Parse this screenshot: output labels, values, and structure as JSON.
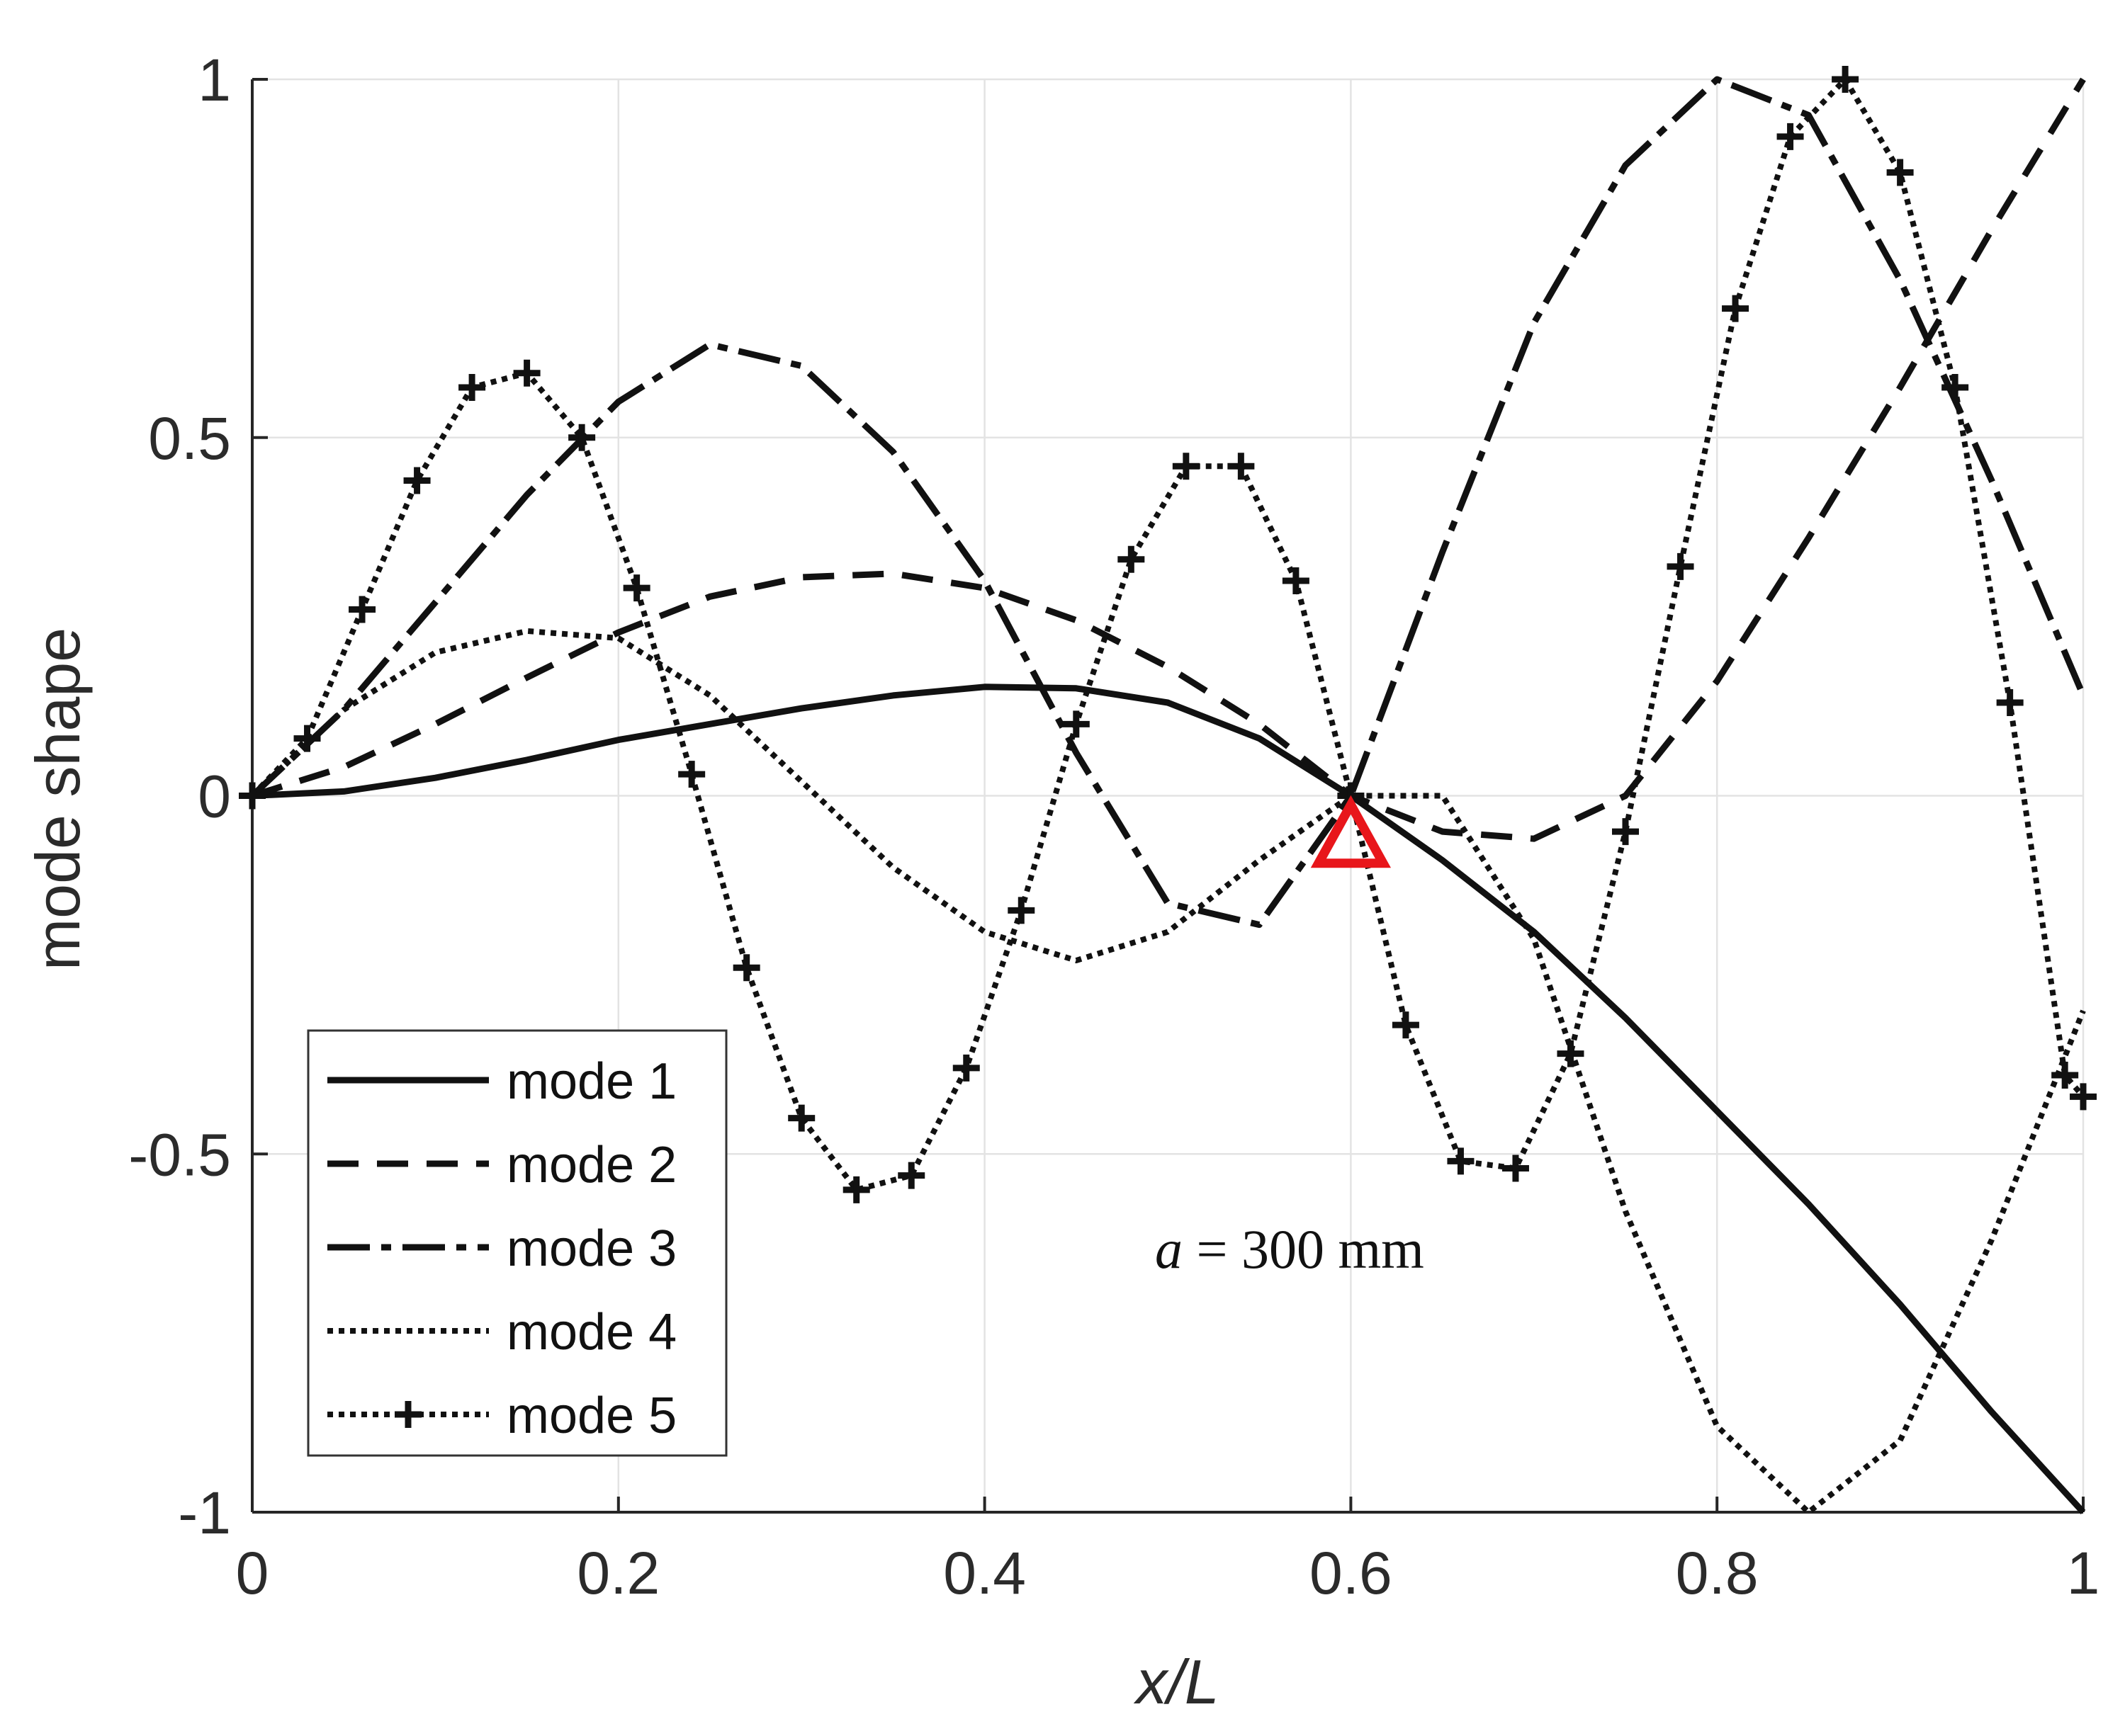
{
  "chart_data": {
    "type": "line",
    "title": "",
    "xlabel": "x/L",
    "ylabel": "mode shape",
    "xlim": [
      0,
      1
    ],
    "ylim": [
      -1,
      1
    ],
    "xticks": [
      0,
      0.2,
      0.4,
      0.6,
      0.8,
      1
    ],
    "yticks": [
      -1,
      -0.5,
      0,
      0.5,
      1
    ],
    "xtick_labels": [
      "0",
      "0.2",
      "0.4",
      "0.6",
      "0.8",
      "1"
    ],
    "ytick_labels": [
      "-1",
      "-0.5",
      "0",
      "0.5",
      "1"
    ],
    "grid": true,
    "legend_position": "bottom-left",
    "series": [
      {
        "name": "mode 1",
        "style": "solid",
        "marker": "none",
        "points": [
          [
            0,
            0
          ],
          [
            0.05,
            0.006
          ],
          [
            0.1,
            0.025
          ],
          [
            0.15,
            0.05
          ],
          [
            0.2,
            0.078
          ],
          [
            0.25,
            0.1
          ],
          [
            0.3,
            0.122
          ],
          [
            0.35,
            0.14
          ],
          [
            0.4,
            0.152
          ],
          [
            0.45,
            0.15
          ],
          [
            0.5,
            0.13
          ],
          [
            0.55,
            0.08
          ],
          [
            0.6,
            0
          ],
          [
            0.65,
            -0.09
          ],
          [
            0.7,
            -0.19
          ],
          [
            0.75,
            -0.31
          ],
          [
            0.8,
            -0.44
          ],
          [
            0.85,
            -0.57
          ],
          [
            0.9,
            -0.71
          ],
          [
            0.95,
            -0.86
          ],
          [
            1,
            -1.0
          ]
        ]
      },
      {
        "name": "mode 2",
        "style": "dashed",
        "marker": "none",
        "points": [
          [
            0,
            0
          ],
          [
            0.05,
            0.04
          ],
          [
            0.1,
            0.1
          ],
          [
            0.15,
            0.165
          ],
          [
            0.2,
            0.228
          ],
          [
            0.25,
            0.278
          ],
          [
            0.3,
            0.305
          ],
          [
            0.35,
            0.31
          ],
          [
            0.4,
            0.29
          ],
          [
            0.45,
            0.245
          ],
          [
            0.5,
            0.18
          ],
          [
            0.55,
            0.1
          ],
          [
            0.6,
            0
          ],
          [
            0.65,
            -0.05
          ],
          [
            0.7,
            -0.06
          ],
          [
            0.75,
            0
          ],
          [
            0.8,
            0.16
          ],
          [
            0.85,
            0.36
          ],
          [
            0.9,
            0.57
          ],
          [
            0.95,
            0.79
          ],
          [
            1,
            1.0
          ]
        ]
      },
      {
        "name": "mode 3",
        "style": "dashdot",
        "marker": "none",
        "points": [
          [
            0,
            0
          ],
          [
            0.05,
            0.12
          ],
          [
            0.1,
            0.27
          ],
          [
            0.15,
            0.42
          ],
          [
            0.2,
            0.55
          ],
          [
            0.25,
            0.63
          ],
          [
            0.3,
            0.6
          ],
          [
            0.35,
            0.48
          ],
          [
            0.4,
            0.3
          ],
          [
            0.45,
            0.06
          ],
          [
            0.5,
            -0.15
          ],
          [
            0.55,
            -0.18
          ],
          [
            0.6,
            0
          ],
          [
            0.65,
            0.34
          ],
          [
            0.7,
            0.66
          ],
          [
            0.75,
            0.88
          ],
          [
            0.8,
            1.0
          ],
          [
            0.85,
            0.95
          ],
          [
            0.9,
            0.72
          ],
          [
            0.95,
            0.44
          ],
          [
            1,
            0.14
          ]
        ]
      },
      {
        "name": "mode 4",
        "style": "dotted",
        "marker": "none",
        "points": [
          [
            0,
            0
          ],
          [
            0.05,
            0.12
          ],
          [
            0.1,
            0.2
          ],
          [
            0.15,
            0.23
          ],
          [
            0.2,
            0.22
          ],
          [
            0.25,
            0.14
          ],
          [
            0.3,
            0.02
          ],
          [
            0.35,
            -0.1
          ],
          [
            0.4,
            -0.19
          ],
          [
            0.45,
            -0.23
          ],
          [
            0.5,
            -0.19
          ],
          [
            0.55,
            -0.09
          ],
          [
            0.6,
            0
          ],
          [
            0.65,
            0.0
          ],
          [
            0.7,
            -0.2
          ],
          [
            0.75,
            -0.58
          ],
          [
            0.8,
            -0.88
          ],
          [
            0.85,
            -1.0
          ],
          [
            0.9,
            -0.9
          ],
          [
            0.95,
            -0.62
          ],
          [
            1,
            -0.3
          ]
        ]
      },
      {
        "name": "mode 5",
        "style": "dotted",
        "marker": "plus",
        "points": [
          [
            0,
            0
          ],
          [
            0.03,
            0.08
          ],
          [
            0.06,
            0.26
          ],
          [
            0.09,
            0.44
          ],
          [
            0.12,
            0.57
          ],
          [
            0.15,
            0.59
          ],
          [
            0.18,
            0.5
          ],
          [
            0.21,
            0.29
          ],
          [
            0.24,
            0.03
          ],
          [
            0.27,
            -0.24
          ],
          [
            0.3,
            -0.45
          ],
          [
            0.33,
            -0.55
          ],
          [
            0.36,
            -0.53
          ],
          [
            0.39,
            -0.38
          ],
          [
            0.42,
            -0.16
          ],
          [
            0.45,
            0.1
          ],
          [
            0.48,
            0.33
          ],
          [
            0.51,
            0.46
          ],
          [
            0.54,
            0.46
          ],
          [
            0.57,
            0.3
          ],
          [
            0.6,
            0
          ],
          [
            0.63,
            -0.32
          ],
          [
            0.66,
            -0.51
          ],
          [
            0.69,
            -0.52
          ],
          [
            0.72,
            -0.36
          ],
          [
            0.75,
            -0.05
          ],
          [
            0.78,
            0.32
          ],
          [
            0.81,
            0.68
          ],
          [
            0.84,
            0.92
          ],
          [
            0.87,
            1.0
          ],
          [
            0.9,
            0.87
          ],
          [
            0.93,
            0.57
          ],
          [
            0.96,
            0.13
          ],
          [
            0.99,
            -0.39
          ],
          [
            1,
            -0.42
          ]
        ]
      }
    ],
    "marker_point": {
      "x": 0.6,
      "y": -0.06,
      "shape": "triangle",
      "color": "#e8161b"
    },
    "annotation": {
      "prefix": "a",
      "text": " = 300 mm",
      "x": 0.6,
      "y": -0.63
    }
  }
}
